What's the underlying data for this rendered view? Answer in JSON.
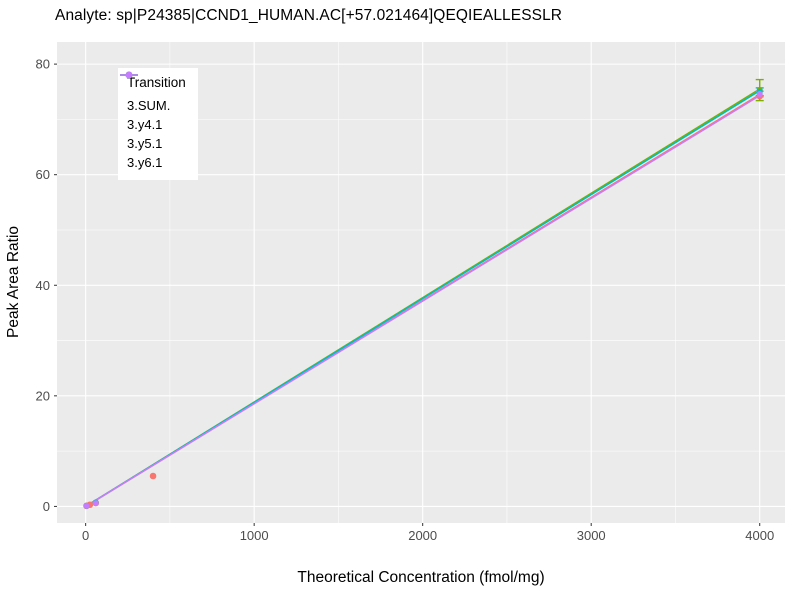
{
  "title": "Analyte: sp|P24385|CCND1_HUMAN.AC[+57.021464]QEQIEALLESSLR",
  "chart_data": {
    "type": "line",
    "title": "Analyte: sp|P24385|CCND1_HUMAN.AC[+57.021464]QEQIEALLESSLR",
    "xlabel": "Theoretical Concentration (fmol/mg)",
    "ylabel": "Peak Area Ratio",
    "xlim": [
      -170,
      4150
    ],
    "ylim": [
      -3,
      84
    ],
    "x_ticks": [
      0,
      1000,
      2000,
      3000,
      4000
    ],
    "y_ticks": [
      0,
      20,
      40,
      60,
      80
    ],
    "grid": true,
    "panel_bg": "#EBEBEB",
    "grid_color": "#FFFFFF",
    "tick_label_color": "#4D4D4D",
    "legend": {
      "title": "Transition",
      "position": "top-left-inside"
    },
    "series": [
      {
        "name": "3.SUM.",
        "color": "#F8766D",
        "line": {
          "x": [
            0,
            4000
          ],
          "y": [
            0,
            74.5
          ]
        },
        "points": [
          {
            "x": 5,
            "y": 0.1
          },
          {
            "x": 25,
            "y": 0.3
          },
          {
            "x": 60,
            "y": 0.6
          },
          {
            "x": 400,
            "y": 5.5
          },
          {
            "x": 4000,
            "y": 74.2
          }
        ]
      },
      {
        "name": "3.y4.1",
        "color": "#7CAE00",
        "line": {
          "x": [
            0,
            4000
          ],
          "y": [
            0,
            75.5
          ]
        },
        "points": [
          {
            "x": 5,
            "y": 0.1
          },
          {
            "x": 60,
            "y": 0.7
          },
          {
            "x": 4000,
            "y": 75.3,
            "yerr": 1.9
          }
        ]
      },
      {
        "name": "3.y5.1",
        "color": "#00BFC4",
        "line": {
          "x": [
            0,
            4000
          ],
          "y": [
            0,
            75.2
          ]
        },
        "points": [
          {
            "x": 5,
            "y": 0.1
          },
          {
            "x": 60,
            "y": 0.7
          },
          {
            "x": 4000,
            "y": 75.0,
            "yerr": 0.7
          }
        ]
      },
      {
        "name": "3.y6.1",
        "color": "#C77CFF",
        "line": {
          "x": [
            0,
            4000
          ],
          "y": [
            0,
            74.3
          ]
        },
        "points": [
          {
            "x": 5,
            "y": 0.1
          },
          {
            "x": 60,
            "y": 0.6
          },
          {
            "x": 4000,
            "y": 74.6,
            "yerr": 0.5
          }
        ]
      }
    ]
  }
}
